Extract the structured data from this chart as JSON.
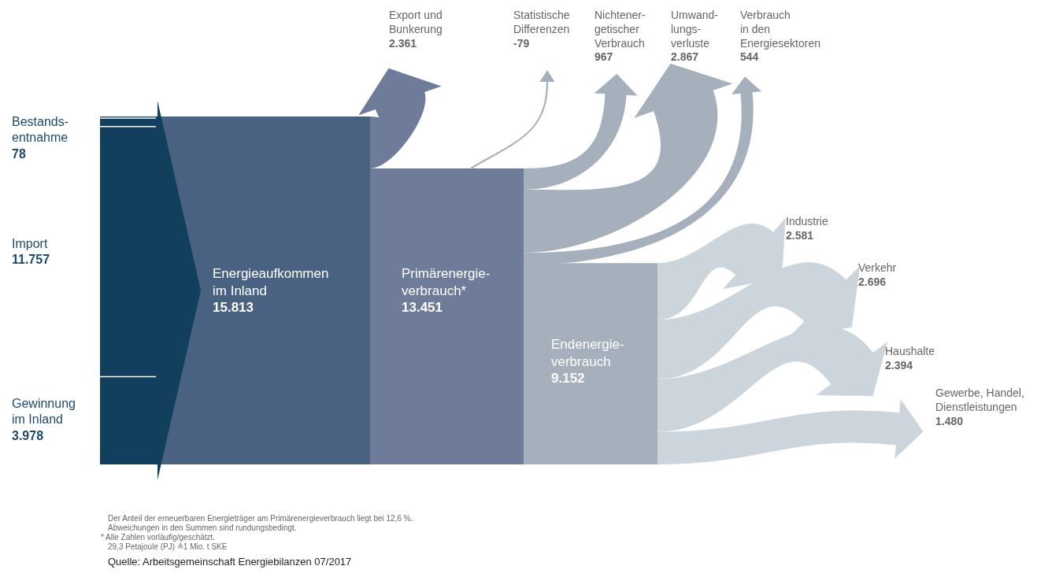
{
  "chart_data": {
    "type": "other",
    "categories": [
      "Bestands-\nentnahme",
      "Import",
      "Gewinnung\nim Inland",
      "Energieaufkommen\nim Inland",
      "Export und\nBunkerung",
      "Primärenergie-\nverbrauch*",
      "Statistische\nDifferenzen",
      "Nichtener-\ngetischer\nVerbrauch",
      "Umwand-\nlungs-\nverluste",
      "Verbrauch\nin den\nEnergiesektoren",
      "Endenergie-\nverbrauch",
      "Industrie",
      "Verkehr",
      "Haushalte",
      "Gewerbe, Handel,\nDienstleistungen"
    ],
    "values": [
      78,
      11757,
      3978,
      15813,
      2361,
      13451,
      -79,
      967,
      2867,
      544,
      9152,
      2581,
      2696,
      2394,
      1480
    ],
    "value_labels": [
      "78",
      "11.757",
      "3.978",
      "15.813",
      "2.361",
      "13.451",
      "-79",
      "967",
      "2.867",
      "544",
      "9.152",
      "2.581",
      "2.696",
      "2.394",
      "1.480"
    ],
    "colors": [
      "#123f5e",
      "#123f5e",
      "#123f5e",
      "#4a6282",
      "#6e7c99",
      "#6e7c99",
      "#a6b0bd",
      "#a6b0bd",
      "#a6b0bd",
      "#a6b0bd",
      "#a6b0bd",
      "#ccd5dc",
      "#ccd5dc",
      "#ccd5dc",
      "#ccd5dc"
    ],
    "annotations": [
      "Der Anteil der erneuerbaren Energieträger am Primärenergieverbrauch liegt bei 12,6 %.",
      "Abweichungen in den Summen sind rundungsbedingt.",
      "* Alle Zahlen vorläufig/geschätzt.",
      "29,3 Petajoule (PJ) ≙1 Mio. t SKE",
      "Quelle: Arbeitsgemeinschaft Energiebilanzen 07/2017"
    ]
  }
}
